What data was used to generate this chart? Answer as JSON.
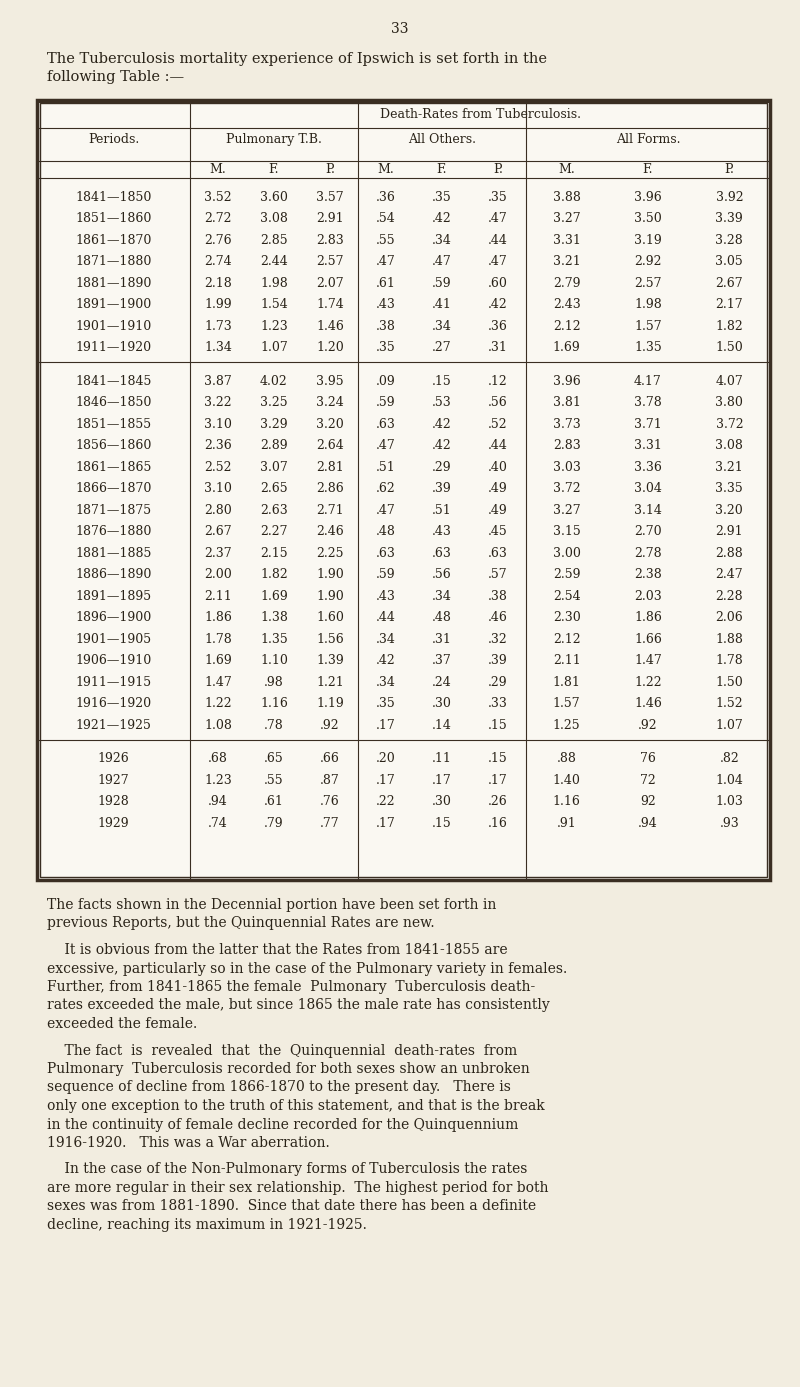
{
  "page_number": "33",
  "intro_line1": "The Tuberculosis mortality experience of Ipswich is set forth in the",
  "intro_line2": "following Table :—",
  "table_title": "Death-Rates from Tuberculosis.",
  "col_group1": "Pulmonary T.B.",
  "col_group2": "All Others.",
  "col_group3": "All Forms.",
  "col_headers": [
    "M.",
    "F.",
    "P.",
    "M.",
    "F.",
    "P.",
    "M.",
    "F.",
    "P."
  ],
  "period_header": "Periods.",
  "decennial_rows": [
    [
      "1841—1850",
      "3.52",
      "3.60",
      "3.57",
      ".36",
      ".35",
      ".35",
      "3.88",
      "3.96",
      "3.92"
    ],
    [
      "1851—1860",
      "2.72",
      "3.08",
      "2.91",
      ".54",
      ".42",
      ".47",
      "3.27",
      "3.50",
      "3.39"
    ],
    [
      "1861—1870",
      "2.76",
      "2.85",
      "2.83",
      ".55",
      ".34",
      ".44",
      "3.31",
      "3.19",
      "3.28"
    ],
    [
      "1871—1880",
      "2.74",
      "2.44",
      "2.57",
      ".47",
      ".47",
      ".47",
      "3.21",
      "2.92",
      "3.05"
    ],
    [
      "1881—1890",
      "2.18",
      "1.98",
      "2.07",
      ".61",
      ".59",
      ".60",
      "2.79",
      "2.57",
      "2.67"
    ],
    [
      "1891—1900",
      "1.99",
      "1.54",
      "1.74",
      ".43",
      ".41",
      ".42",
      "2.43",
      "1.98",
      "2.17"
    ],
    [
      "1901—1910",
      "1.73",
      "1.23",
      "1.46",
      ".38",
      ".34",
      ".36",
      "2.12",
      "1.57",
      "1.82"
    ],
    [
      "1911—1920",
      "1.34",
      "1.07",
      "1.20",
      ".35",
      ".27",
      ".31",
      "1.69",
      "1.35",
      "1.50"
    ]
  ],
  "quinquennial_rows": [
    [
      "1841—1845",
      "3.87",
      "4.02",
      "3.95",
      ".09",
      ".15",
      ".12",
      "3.96",
      "4.17",
      "4.07"
    ],
    [
      "1846—1850",
      "3.22",
      "3.25",
      "3.24",
      ".59",
      ".53",
      ".56",
      "3.81",
      "3.78",
      "3.80"
    ],
    [
      "1851—1855",
      "3.10",
      "3.29",
      "3.20",
      ".63",
      ".42",
      ".52",
      "3.73",
      "3.71",
      "3.72"
    ],
    [
      "1856—1860",
      "2.36",
      "2.89",
      "2.64",
      ".47",
      ".42",
      ".44",
      "2.83",
      "3.31",
      "3.08"
    ],
    [
      "1861—1865",
      "2.52",
      "3.07",
      "2.81",
      ".51",
      ".29",
      ".40",
      "3.03",
      "3.36",
      "3.21"
    ],
    [
      "1866—1870",
      "3.10",
      "2.65",
      "2.86",
      ".62",
      ".39",
      ".49",
      "3.72",
      "3.04",
      "3.35"
    ],
    [
      "1871—1875",
      "2.80",
      "2.63",
      "2.71",
      ".47",
      ".51",
      ".49",
      "3.27",
      "3.14",
      "3.20"
    ],
    [
      "1876—1880",
      "2.67",
      "2.27",
      "2.46",
      ".48",
      ".43",
      ".45",
      "3.15",
      "2.70",
      "2.91"
    ],
    [
      "1881—1885",
      "2.37",
      "2.15",
      "2.25",
      ".63",
      ".63",
      ".63",
      "3.00",
      "2.78",
      "2.88"
    ],
    [
      "1886—1890",
      "2.00",
      "1.82",
      "1.90",
      ".59",
      ".56",
      ".57",
      "2.59",
      "2.38",
      "2.47"
    ],
    [
      "1891—1895",
      "2.11",
      "1.69",
      "1.90",
      ".43",
      ".34",
      ".38",
      "2.54",
      "2.03",
      "2.28"
    ],
    [
      "1896—1900",
      "1.86",
      "1.38",
      "1.60",
      ".44",
      ".48",
      ".46",
      "2.30",
      "1.86",
      "2.06"
    ],
    [
      "1901—1905",
      "1.78",
      "1.35",
      "1.56",
      ".34",
      ".31",
      ".32",
      "2.12",
      "1.66",
      "1.88"
    ],
    [
      "1906—1910",
      "1.69",
      "1.10",
      "1.39",
      ".42",
      ".37",
      ".39",
      "2.11",
      "1.47",
      "1.78"
    ],
    [
      "1911—1915",
      "1.47",
      ".98",
      "1.21",
      ".34",
      ".24",
      ".29",
      "1.81",
      "1.22",
      "1.50"
    ],
    [
      "1916—1920",
      "1.22",
      "1.16",
      "1.19",
      ".35",
      ".30",
      ".33",
      "1.57",
      "1.46",
      "1.52"
    ],
    [
      "1921—1925",
      "1.08",
      ".78",
      ".92",
      ".17",
      ".14",
      ".15",
      "1.25",
      ".92",
      "1.07"
    ]
  ],
  "annual_rows": [
    [
      "1926",
      ".68",
      ".65",
      ".66",
      ".20",
      ".11",
      ".15",
      ".88",
      "76",
      ".82"
    ],
    [
      "1927",
      "1.23",
      ".55",
      ".87",
      ".17",
      ".17",
      ".17",
      "1.40",
      "72",
      "1.04"
    ],
    [
      "1928",
      ".94",
      ".61",
      ".76",
      ".22",
      ".30",
      ".26",
      "1.16",
      "92",
      "1.03"
    ],
    [
      "1929",
      ".74",
      ".79",
      ".77",
      ".17",
      ".15",
      ".16",
      ".91",
      ".94",
      ".93"
    ]
  ],
  "footer_paragraphs": [
    "The facts shown in the Decennial portion have been set forth in\nprevious Reports, but the Quinquennial Rates are new.",
    "    It is obvious from the latter that the Rates from 1841-1855 are\nexcessive, particularly so in the case of the Pulmonary variety in females.\nFurther, from 1841-1865 the female  Pulmonary  Tuberculosis death-\nrates exceeded the male, but since 1865 the male rate has consistently\nexceeded the female.",
    "    The fact  is  revealed  that  the  Quinquennial  death-rates  from\nPulmonary  Tuberculosis recorded for both sexes show an unbroken\nsequence of decline from 1866-1870 to the present day.   There is\nonly one exception to the truth of this statement, and that is the break\nin the continuity of female decline recorded for the Quinquennium\n1916-1920.   This was a War aberration.",
    "    In the case of the Non-Pulmonary forms of Tuberculosis the rates\nare more regular in their sex relationship.  The highest period for both\nsexes was from 1881-1890.  Since that date there has been a definite\ndecline, reaching its maximum in 1921-1925."
  ],
  "bg_color": "#f2ede0",
  "text_color": "#2a2318",
  "table_bg": "#faf8f2",
  "border_color": "#3a2e22"
}
